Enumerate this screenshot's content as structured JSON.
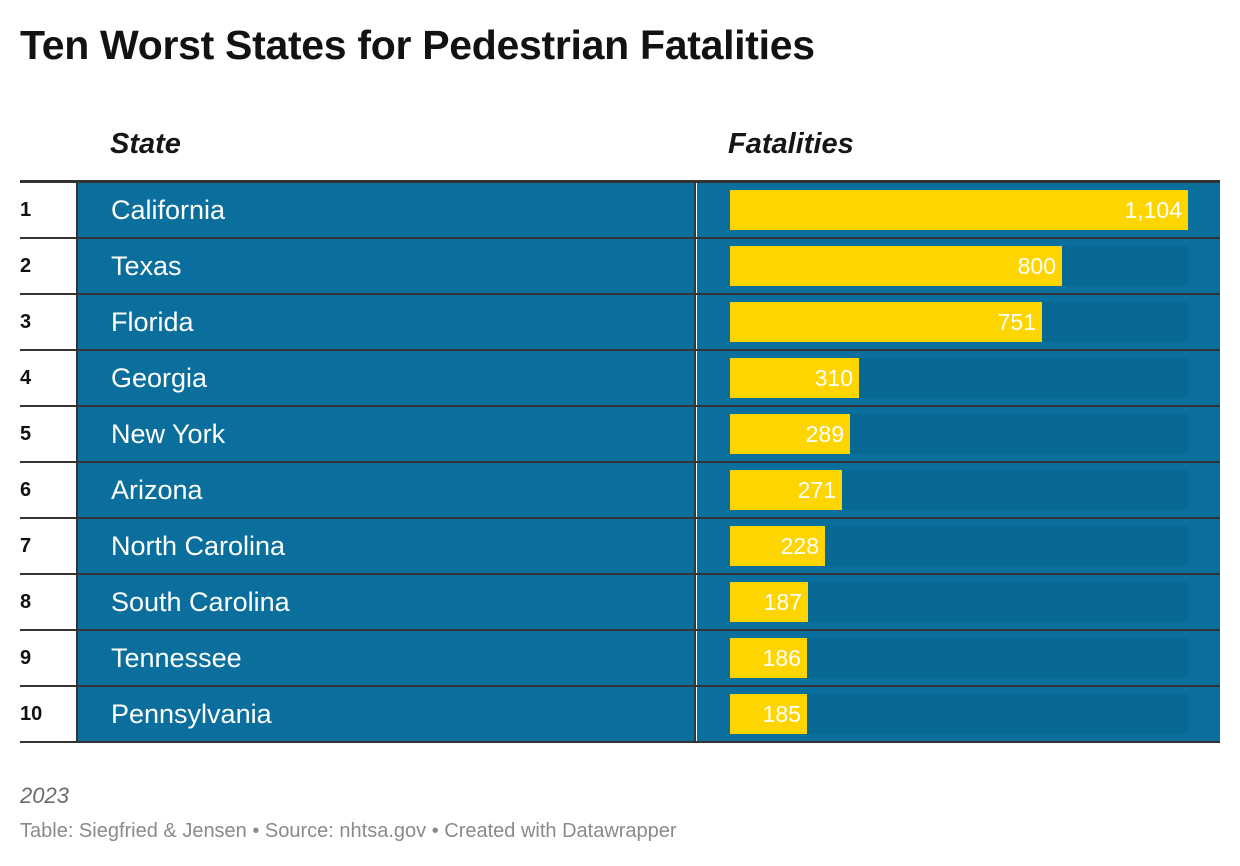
{
  "title": "Ten Worst States for Pedestrian Fatalities",
  "columns": {
    "state": "State",
    "fatalities": "Fatalities"
  },
  "colors": {
    "row_background": "#0b6f9d",
    "bar_track": "#086894",
    "bar_fill": "#ffd500",
    "rule": "#333333"
  },
  "chart_data": {
    "type": "table",
    "title": "Ten Worst States for Pedestrian Fatalities",
    "columns": [
      "State",
      "Fatalities"
    ],
    "rows": [
      {
        "rank": "1",
        "state": "California",
        "value": 1104,
        "label": "1,104"
      },
      {
        "rank": "2",
        "state": "Texas",
        "value": 800,
        "label": "800"
      },
      {
        "rank": "3",
        "state": "Florida",
        "value": 751,
        "label": "751"
      },
      {
        "rank": "4",
        "state": "Georgia",
        "value": 310,
        "label": "310"
      },
      {
        "rank": "5",
        "state": "New York",
        "value": 289,
        "label": "289"
      },
      {
        "rank": "6",
        "state": "Arizona",
        "value": 271,
        "label": "271"
      },
      {
        "rank": "7",
        "state": "North Carolina",
        "value": 228,
        "label": "228"
      },
      {
        "rank": "8",
        "state": "South Carolina",
        "value": 187,
        "label": "187"
      },
      {
        "rank": "9",
        "state": "Tennessee",
        "value": 186,
        "label": "186"
      },
      {
        "rank": "10",
        "state": "Pennsylvania",
        "value": 185,
        "label": "185"
      }
    ],
    "bar_max": 1104
  },
  "notes": "2023",
  "footer": "Table: Siegfried & Jensen • Source: nhtsa.gov • Created with Datawrapper"
}
